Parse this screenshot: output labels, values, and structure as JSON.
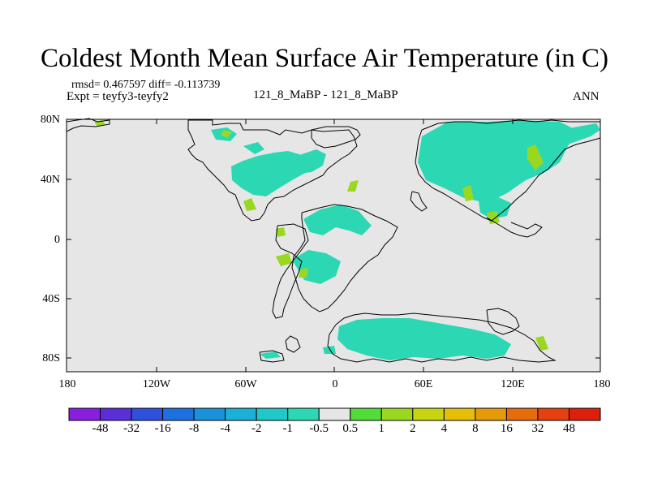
{
  "title": "Coldest Month Mean Surface Air Temperature (in C)",
  "stats": {
    "rmsd": "rmsd= 0.467597 diff= -0.113739",
    "expt": "Expt = teyfy3-teyfy2"
  },
  "center_label": "121_8_MaBP - 121_8_MaBP",
  "right_label": "ANN",
  "axes": {
    "y_ticks": [
      "80N",
      "40N",
      "0",
      "40S",
      "80S"
    ],
    "x_ticks": [
      "180",
      "120W",
      "60W",
      "0",
      "60E",
      "120E",
      "180"
    ]
  },
  "colorbar": {
    "labels": [
      "-48",
      "-32",
      "-16",
      "-8",
      "-4",
      "-2",
      "-1",
      "-0.5",
      "0.5",
      "1",
      "2",
      "4",
      "8",
      "16",
      "32",
      "48"
    ],
    "colors": [
      "#8a1ee0",
      "#5a2ed8",
      "#2f50dd",
      "#1c70e0",
      "#1a92da",
      "#1ab0d8",
      "#20c8c8",
      "#2cd8b4",
      "#e6e6e6",
      "#52dc3a",
      "#9ad820",
      "#c8d410",
      "#e6be08",
      "#e69a0a",
      "#e66c0c",
      "#e64010",
      "#dd200c"
    ]
  },
  "colors": {
    "background": "#e6e6e6",
    "coast": "#000000",
    "negative_fill": "#2cd8b4",
    "positive_fill": "#9ad820"
  }
}
